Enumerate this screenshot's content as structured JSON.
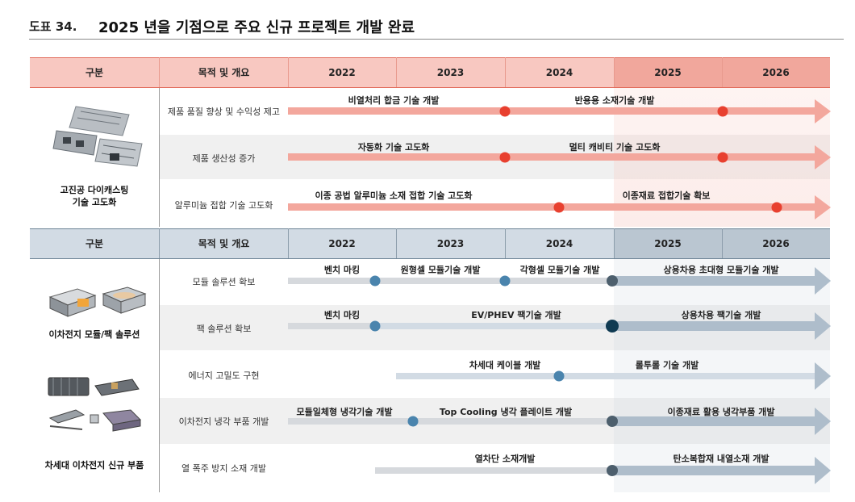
{
  "figure": {
    "number": "도표 34.",
    "title": "2025 년을 기점으로 주요 신규 프로젝트 개발 완료"
  },
  "colors": {
    "red_header": "#f8c8c1",
    "red_header_dark": "#f1a79c",
    "red_bar": "#f3a79d",
    "red_dot": "#e8402f",
    "blue_header": "#d2dbe4",
    "blue_header_dark": "#bac6d1",
    "blue_bar": "#d6dee6",
    "blue_arrow": "#aebdcb",
    "blue_dot": "#4a84ad",
    "dark_dot": "#4d5f6d",
    "navy_dot": "#0f3a52"
  },
  "top_section": {
    "header": {
      "col1": "구분",
      "col2": "목적 및 개요",
      "years": [
        "2022",
        "2023",
        "2024",
        "2025",
        "2026"
      ]
    },
    "group_label": "고진공 다이캐스팅\n기술 고도화",
    "rows": [
      {
        "purpose": "제품 품질 향상 및 수익성 제고",
        "labels": [
          "비열처리 합금 기술 개발",
          "반용용 소재기술 개발"
        ]
      },
      {
        "purpose": "제품 생산성 증가",
        "labels": [
          "자동화 기술 고도화",
          "멀티 캐비티 기술 고도화"
        ]
      },
      {
        "purpose": "알루미늄 접합 기술 고도화",
        "labels": [
          "이종 공법 알루미늄 소재 접합 기술 고도화",
          "이종재료 접합기술 확보"
        ]
      }
    ]
  },
  "bottom_section": {
    "header": {
      "col1": "구분",
      "col2": "목적 및 개요",
      "years": [
        "2022",
        "2023",
        "2024",
        "2025",
        "2026"
      ]
    },
    "group_labels": [
      "이차전지 모듈/팩 솔루션",
      "차세대 이차전지 신규 부품"
    ],
    "rows": [
      {
        "purpose": "모듈 솔루션 확보",
        "labels": [
          "벤치 마킹",
          "원형셀 모듈기술 개발",
          "각형셀 모듈기술 개발",
          "상용차용 초대형 모듈기술 개발"
        ]
      },
      {
        "purpose": "팩 솔루션 확보",
        "labels": [
          "벤치 마킹",
          "EV/PHEV 팩기술 개발",
          "상용차용 팩기술 개발"
        ]
      },
      {
        "purpose": "에너지 고밀도 구현",
        "labels": [
          "차세대 케이블 개발",
          "롤투롤 기술 개발"
        ]
      },
      {
        "purpose": "이차전지 냉각 부품 개발",
        "labels": [
          "모듈일체형 냉각기술 개발",
          "Top Cooling 냉각 플레이트 개발",
          "이종재료 활용 냉각부품 개발"
        ]
      },
      {
        "purpose": "열 폭주 방지 소재 개발",
        "labels": [
          "열차단 소재개발",
          "탄소복합재 내열소재 개발"
        ]
      }
    ]
  }
}
